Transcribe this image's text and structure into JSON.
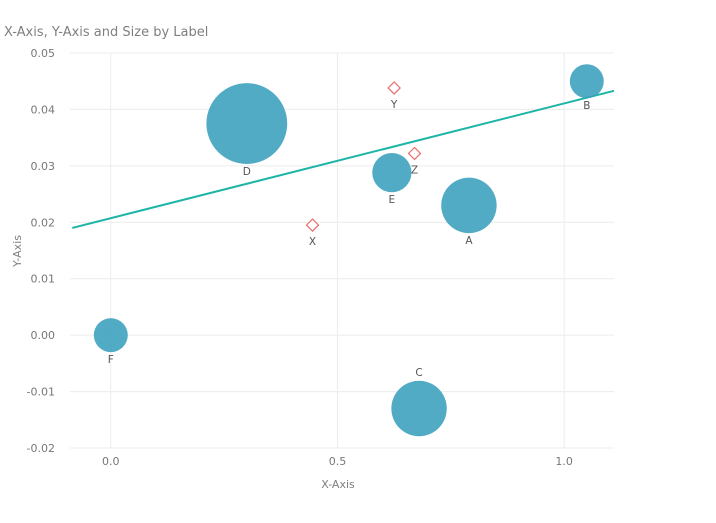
{
  "chart_data": {
    "type": "scatter",
    "title": "X-Axis, Y-Axis and Size by Label",
    "xlabel": "X-Axis",
    "ylabel": "Y-Axis",
    "xlim": [
      -0.09,
      1.11
    ],
    "ylim": [
      -0.02,
      0.05
    ],
    "x_ticks": [
      "0.0",
      "0.5",
      "1.0"
    ],
    "x_tick_values": [
      0.0,
      0.5,
      1.0
    ],
    "y_ticks": [
      "0.05",
      "0.04",
      "0.03",
      "0.02",
      "0.01",
      "0.00",
      "-0.01",
      "-0.02"
    ],
    "y_tick_values": [
      0.05,
      0.04,
      0.03,
      0.02,
      0.01,
      0.0,
      -0.01,
      -0.02
    ],
    "grid": true,
    "series": [
      {
        "marker": "bubble",
        "color": "#3a9fbd",
        "points": [
          {
            "label": "A",
            "x": 0.79,
            "y": 0.023,
            "size": 8
          },
          {
            "label": "B",
            "x": 1.05,
            "y": 0.045,
            "size": 3
          },
          {
            "label": "C",
            "x": 0.68,
            "y": -0.013,
            "size": 8
          },
          {
            "label": "D",
            "x": 0.3,
            "y": 0.0375,
            "size": 17
          },
          {
            "label": "E",
            "x": 0.62,
            "y": 0.0288,
            "size": 4
          },
          {
            "label": "F",
            "x": 0.0,
            "y": 0.0,
            "size": 3
          }
        ]
      },
      {
        "marker": "diamond",
        "color": "#e8706e",
        "points": [
          {
            "label": "X",
            "x": 0.445,
            "y": 0.0195
          },
          {
            "label": "Y",
            "x": 0.625,
            "y": 0.0438
          },
          {
            "label": "Z",
            "x": 0.67,
            "y": 0.0322
          }
        ]
      }
    ],
    "trendline": {
      "color": "#1db5a6",
      "x1": -0.085,
      "y1": 0.019,
      "x2": 1.11,
      "y2": 0.0433
    }
  }
}
